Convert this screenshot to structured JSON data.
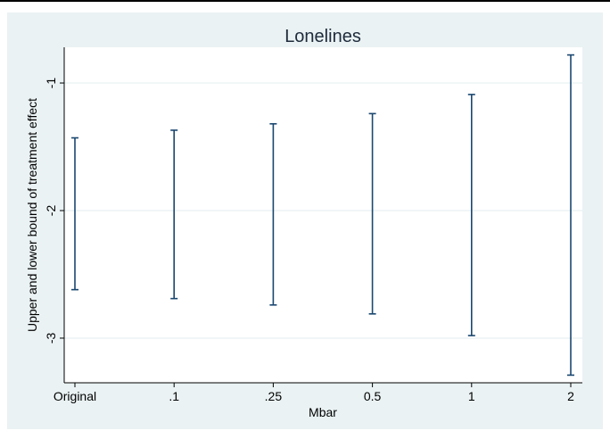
{
  "chart_data": {
    "type": "range-bar",
    "title": "Lonelines",
    "xlabel": "Mbar",
    "ylabel": "Upper and lower bound of treatment effect",
    "categories": [
      "Original",
      ".1",
      ".25",
      "0.5",
      "1",
      "2"
    ],
    "lower": [
      -2.62,
      -2.69,
      -2.74,
      -2.81,
      -2.98,
      -3.29
    ],
    "upper": [
      -1.43,
      -1.37,
      -1.32,
      -1.24,
      -1.09,
      -0.78
    ],
    "yticks": [
      -3,
      -2,
      -1
    ],
    "ylim": [
      -3.35,
      -0.72
    ],
    "grid": true,
    "legend": "none",
    "colors": {
      "outer_background": "#eaf2f3",
      "plot_background": "#ffffff",
      "gridline": "#e3edef",
      "range_bar": "#1a476f",
      "axis": "#000000",
      "text": "#000000",
      "title": "#1e2b3c"
    }
  }
}
